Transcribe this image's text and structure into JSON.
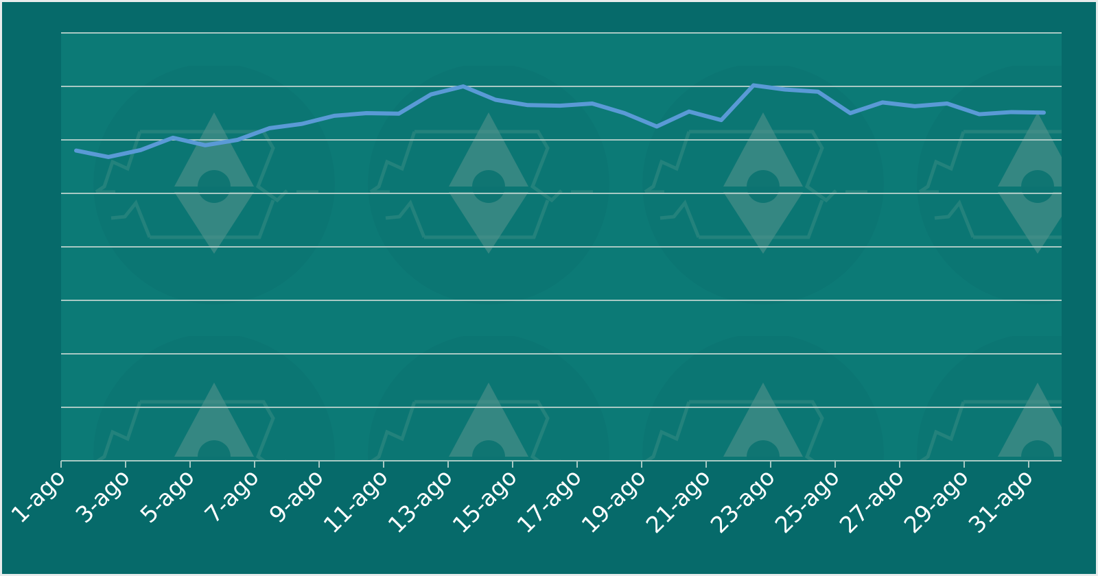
{
  "colors": {
    "background": "#066a6a",
    "plot_area": "#0c7a76",
    "gridline": "#a9c9c4",
    "line": "#5a9ad6",
    "tick_text": "#ffffff"
  },
  "chart_data": {
    "type": "line",
    "title": "",
    "xlabel": "",
    "ylabel": "",
    "x": [
      "1-ago",
      "2-ago",
      "3-ago",
      "4-ago",
      "5-ago",
      "6-ago",
      "7-ago",
      "8-ago",
      "9-ago",
      "10-ago",
      "11-ago",
      "12-ago",
      "13-ago",
      "14-ago",
      "15-ago",
      "16-ago",
      "17-ago",
      "18-ago",
      "19-ago",
      "20-ago",
      "21-ago",
      "22-ago",
      "23-ago",
      "24-ago",
      "25-ago",
      "26-ago",
      "27-ago",
      "28-ago",
      "29-ago",
      "30-ago",
      "31-ago"
    ],
    "tick_labels": [
      "1-ago",
      "3-ago",
      "5-ago",
      "7-ago",
      "9-ago",
      "11-ago",
      "13-ago",
      "15-ago",
      "17-ago",
      "19-ago",
      "21-ago",
      "23-ago",
      "25-ago",
      "27-ago",
      "29-ago",
      "31-ago"
    ],
    "series": [
      {
        "values": [
          58.0,
          56.8,
          58.1,
          60.4,
          59.0,
          60.0,
          62.2,
          63.0,
          64.5,
          65.0,
          64.9,
          68.5,
          70.0,
          67.5,
          66.5,
          66.4,
          66.8,
          65.0,
          62.5,
          65.3,
          63.7,
          70.2,
          69.4,
          69.0,
          65.0,
          67.0,
          66.3,
          66.8,
          64.8,
          65.2,
          65.1
        ]
      }
    ],
    "ylim": [
      0,
      80
    ],
    "y_gridlines": 8,
    "y_tick_labels_shown": false,
    "grid": true,
    "legend": "none"
  }
}
